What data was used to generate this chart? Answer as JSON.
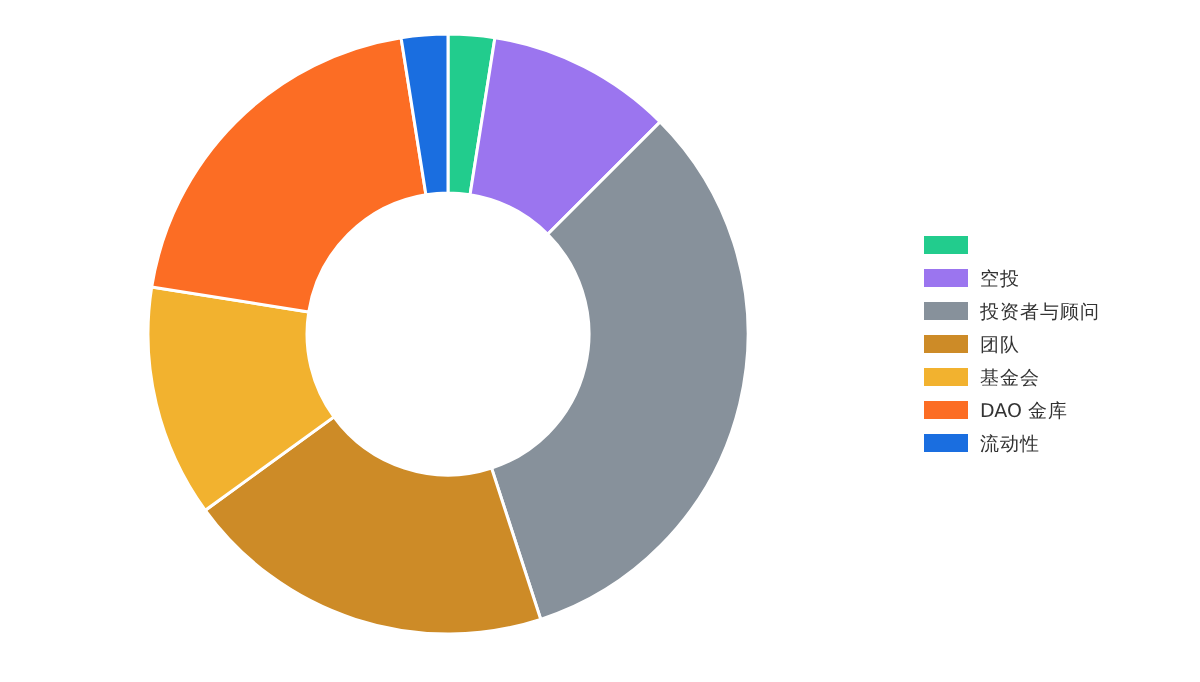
{
  "chart_data": {
    "type": "donut",
    "categories": [
      null,
      "空投",
      "投资者与顾问",
      "团队",
      "基金会",
      "DAO 金库",
      "流动性"
    ],
    "values": [
      2.5,
      10,
      32.5,
      20,
      12.5,
      20,
      2.5
    ],
    "colors": [
      "#22cc8d",
      "#9b75ef",
      "#87919b",
      "#cd8b27",
      "#f2b22f",
      "#fc6d24",
      "#1a6ee0"
    ],
    "legend": "right"
  }
}
